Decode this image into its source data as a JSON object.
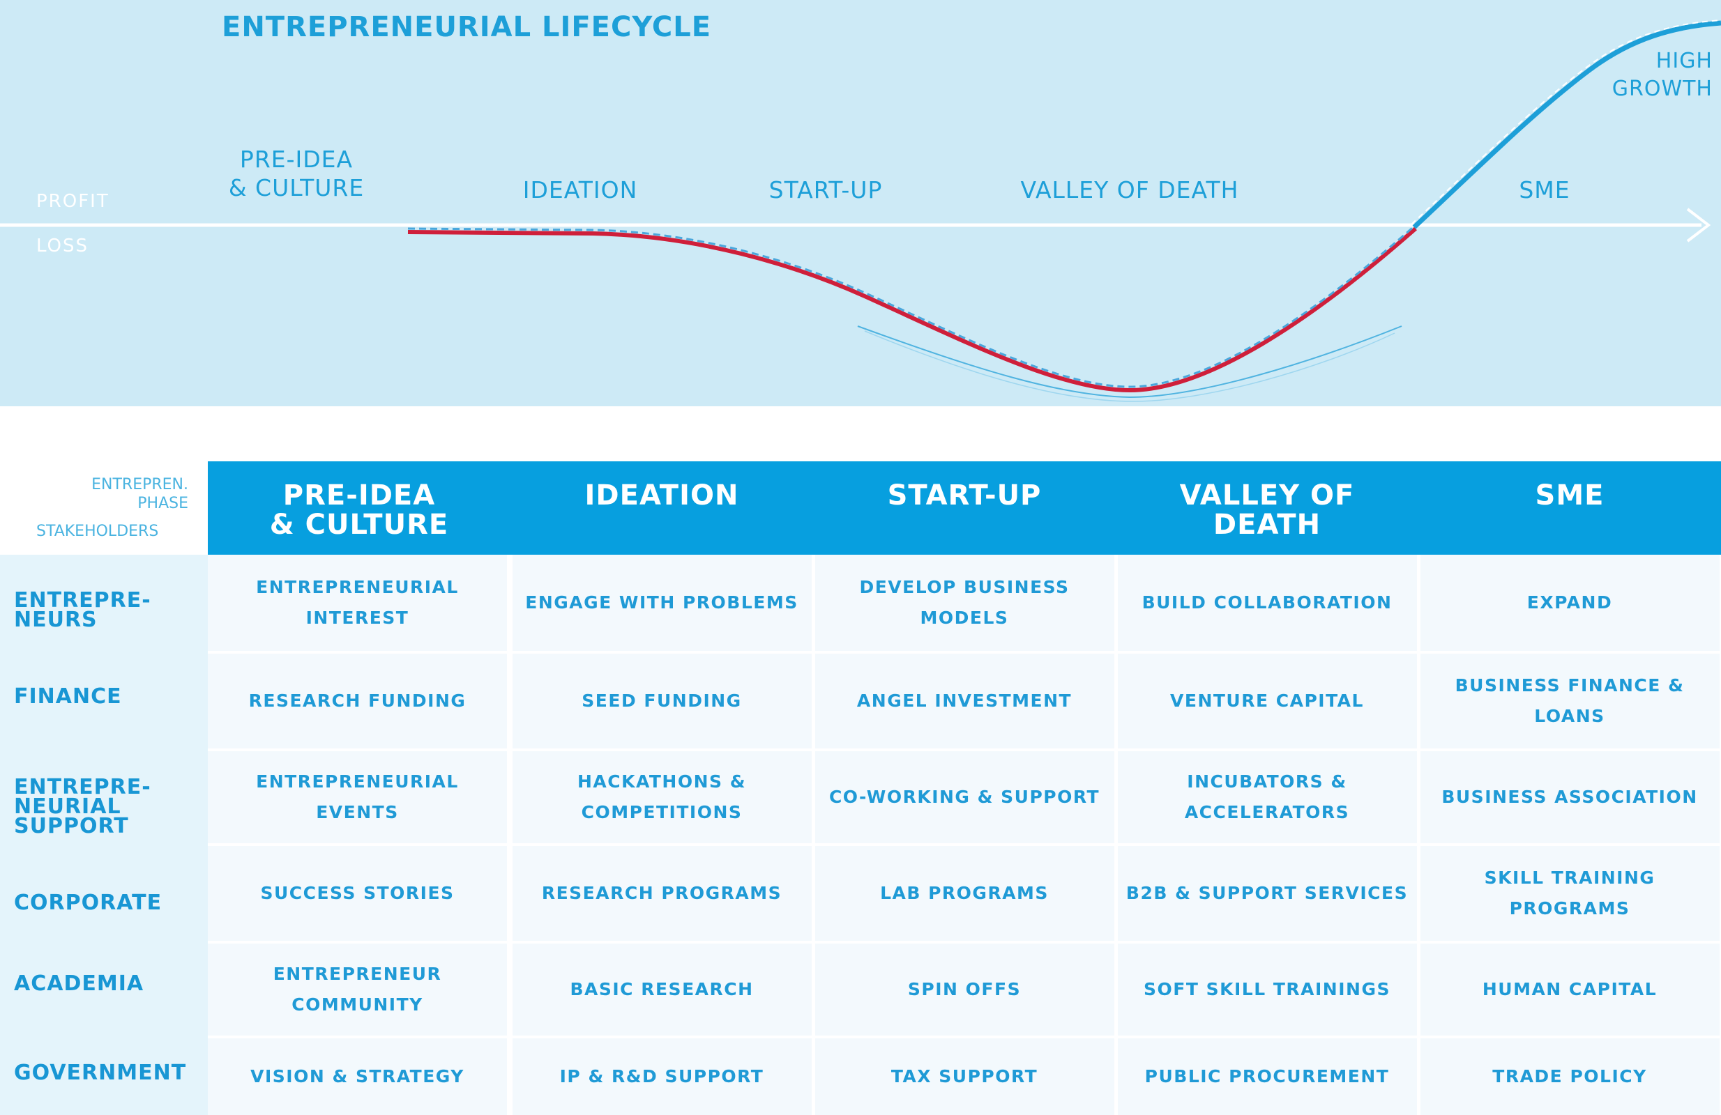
{
  "diagram": {
    "title": "ENTREPRENEURIAL LIFECYCLE",
    "axis": {
      "profit_label": "PROFIT",
      "loss_label": "LOSS"
    },
    "stage_labels": [
      "PRE-IDEA\n& CULTURE",
      "IDEATION",
      "START-UP",
      "VALLEY OF DEATH",
      "SME",
      "HIGH\nGROWTH"
    ],
    "colors": {
      "loss_curve": "#cf1f3a",
      "growth_curve": "#1d9fd8",
      "background": "#cdeaf6"
    }
  },
  "table": {
    "corner": {
      "phase_label": "ENTREPREN.\nPHASE",
      "stakeholder_label": "STAKEHOLDERS"
    },
    "phases": [
      "PRE-IDEA\n& CULTURE",
      "IDEATION",
      "START-UP",
      "VALLEY OF\nDEATH",
      "SME"
    ],
    "rows": [
      {
        "stakeholder": "ENTREPRE-\nNEURS",
        "cells": [
          "ENTREPRENEURIAL\nINTEREST",
          "ENGAGE WITH PROBLEMS",
          "DEVELOP BUSINESS\nMODELS",
          "BUILD COLLABORATION",
          "EXPAND"
        ]
      },
      {
        "stakeholder": "FINANCE",
        "cells": [
          "RESEARCH FUNDING",
          "SEED FUNDING",
          "ANGEL INVESTMENT",
          "VENTURE CAPITAL",
          "BUSINESS FINANCE &\nLOANS"
        ]
      },
      {
        "stakeholder": "ENTREPRE-\nNEURIAL\nSUPPORT",
        "cells": [
          "ENTREPRENEURIAL\nEVENTS",
          "HACKATHONS &\nCOMPETITIONS",
          "CO-WORKING & SUPPORT",
          "INCUBATORS &\nACCELERATORS",
          "BUSINESS ASSOCIATION"
        ]
      },
      {
        "stakeholder": "CORPORATE",
        "cells": [
          "SUCCESS STORIES",
          "RESEARCH PROGRAMS",
          "LAB PROGRAMS",
          "B2B & SUPPORT SERVICES",
          "SKILL TRAINING\nPROGRAMS"
        ]
      },
      {
        "stakeholder": "ACADEMIA",
        "cells": [
          "ENTREPRENEUR\nCOMMUNITY",
          "BASIC RESEARCH",
          "SPIN OFFS",
          "SOFT SKILL TRAININGS",
          "HUMAN CAPITAL"
        ]
      },
      {
        "stakeholder": "GOVERNMENT",
        "cells": [
          "VISION & STRATEGY",
          "IP & R&D SUPPORT",
          "TAX SUPPORT",
          "PUBLIC PROCUREMENT",
          "TRADE POLICY"
        ]
      }
    ]
  }
}
